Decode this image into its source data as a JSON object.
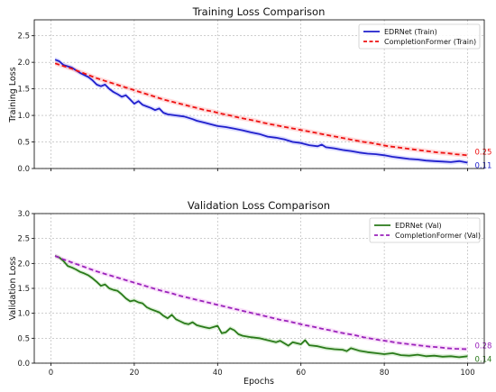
{
  "chart_data": [
    {
      "type": "line",
      "title": "Training Loss Comparison",
      "xlabel": "",
      "ylabel": "Training Loss",
      "xlim": [
        -4,
        104
      ],
      "ylim": [
        0,
        2.8
      ],
      "xticks": [
        0,
        20,
        40,
        60,
        80,
        100
      ],
      "yticks": [
        0.0,
        0.5,
        1.0,
        1.5,
        2.0,
        2.5
      ],
      "xtick_labels_visible": false,
      "grid": true,
      "legend": "top-right",
      "series": [
        {
          "name": "EDRNet (Train)",
          "color": "#1f1fcc",
          "style": "solid",
          "band_color": "#9e9eff",
          "end_label": "0.11",
          "points": [
            [
              1,
              2.05
            ],
            [
              2,
              2.02
            ],
            [
              3,
              1.95
            ],
            [
              5,
              1.9
            ],
            [
              7,
              1.8
            ],
            [
              9,
              1.72
            ],
            [
              10,
              1.66
            ],
            [
              11,
              1.58
            ],
            [
              12,
              1.55
            ],
            [
              13,
              1.58
            ],
            [
              14,
              1.5
            ],
            [
              15,
              1.44
            ],
            [
              16,
              1.4
            ],
            [
              17,
              1.35
            ],
            [
              18,
              1.38
            ],
            [
              19,
              1.3
            ],
            [
              20,
              1.22
            ],
            [
              21,
              1.27
            ],
            [
              22,
              1.2
            ],
            [
              23,
              1.17
            ],
            [
              24,
              1.14
            ],
            [
              25,
              1.1
            ],
            [
              26,
              1.13
            ],
            [
              27,
              1.05
            ],
            [
              28,
              1.02
            ],
            [
              30,
              1.0
            ],
            [
              32,
              0.98
            ],
            [
              34,
              0.93
            ],
            [
              35,
              0.9
            ],
            [
              36,
              0.88
            ],
            [
              37,
              0.86
            ],
            [
              38,
              0.84
            ],
            [
              40,
              0.8
            ],
            [
              42,
              0.78
            ],
            [
              44,
              0.75
            ],
            [
              46,
              0.72
            ],
            [
              48,
              0.68
            ],
            [
              50,
              0.65
            ],
            [
              52,
              0.6
            ],
            [
              54,
              0.58
            ],
            [
              56,
              0.55
            ],
            [
              58,
              0.5
            ],
            [
              60,
              0.48
            ],
            [
              62,
              0.44
            ],
            [
              64,
              0.42
            ],
            [
              65,
              0.45
            ],
            [
              66,
              0.4
            ],
            [
              68,
              0.38
            ],
            [
              70,
              0.35
            ],
            [
              72,
              0.33
            ],
            [
              74,
              0.3
            ],
            [
              76,
              0.28
            ],
            [
              78,
              0.27
            ],
            [
              80,
              0.25
            ],
            [
              82,
              0.22
            ],
            [
              84,
              0.2
            ],
            [
              86,
              0.18
            ],
            [
              88,
              0.17
            ],
            [
              90,
              0.15
            ],
            [
              92,
              0.14
            ],
            [
              94,
              0.13
            ],
            [
              96,
              0.12
            ],
            [
              98,
              0.14
            ],
            [
              100,
              0.11
            ]
          ]
        },
        {
          "name": "CompletionFormer (Train)",
          "color": "#ee1111",
          "style": "dashed",
          "band_color": "#ff9a9a",
          "end_label": "0.25",
          "points": [
            [
              1,
              1.98
            ],
            [
              3,
              1.93
            ],
            [
              5,
              1.88
            ],
            [
              7,
              1.82
            ],
            [
              9,
              1.76
            ],
            [
              11,
              1.7
            ],
            [
              13,
              1.65
            ],
            [
              15,
              1.6
            ],
            [
              17,
              1.55
            ],
            [
              19,
              1.5
            ],
            [
              21,
              1.45
            ],
            [
              23,
              1.4
            ],
            [
              25,
              1.35
            ],
            [
              27,
              1.3
            ],
            [
              29,
              1.26
            ],
            [
              31,
              1.22
            ],
            [
              33,
              1.18
            ],
            [
              35,
              1.14
            ],
            [
              37,
              1.1
            ],
            [
              39,
              1.07
            ],
            [
              41,
              1.03
            ],
            [
              43,
              1.0
            ],
            [
              45,
              0.96
            ],
            [
              47,
              0.93
            ],
            [
              49,
              0.9
            ],
            [
              51,
              0.86
            ],
            [
              53,
              0.83
            ],
            [
              55,
              0.8
            ],
            [
              57,
              0.77
            ],
            [
              59,
              0.74
            ],
            [
              61,
              0.71
            ],
            [
              63,
              0.68
            ],
            [
              65,
              0.65
            ],
            [
              67,
              0.62
            ],
            [
              69,
              0.59
            ],
            [
              71,
              0.56
            ],
            [
              73,
              0.53
            ],
            [
              75,
              0.5
            ],
            [
              77,
              0.48
            ],
            [
              79,
              0.45
            ],
            [
              81,
              0.42
            ],
            [
              83,
              0.4
            ],
            [
              85,
              0.38
            ],
            [
              87,
              0.36
            ],
            [
              89,
              0.34
            ],
            [
              91,
              0.32
            ],
            [
              93,
              0.3
            ],
            [
              95,
              0.29
            ],
            [
              97,
              0.27
            ],
            [
              100,
              0.25
            ]
          ]
        }
      ]
    },
    {
      "type": "line",
      "title": "Validation Loss Comparison",
      "xlabel": "Epochs",
      "ylabel": "Validation Loss",
      "xlim": [
        -4,
        104
      ],
      "ylim": [
        0,
        3.0
      ],
      "xticks": [
        0,
        20,
        40,
        60,
        80,
        100
      ],
      "yticks": [
        0.0,
        0.5,
        1.0,
        1.5,
        2.0,
        2.5,
        3.0
      ],
      "xtick_labels_visible": true,
      "grid": true,
      "legend": "top-right",
      "series": [
        {
          "name": "EDRNet (Val)",
          "color": "#2a7a1a",
          "style": "solid",
          "band_color": "#9ed58e",
          "end_label": "0.14",
          "points": [
            [
              1,
              2.15
            ],
            [
              2,
              2.12
            ],
            [
              3,
              2.05
            ],
            [
              4,
              1.95
            ],
            [
              5,
              1.92
            ],
            [
              6,
              1.88
            ],
            [
              7,
              1.83
            ],
            [
              8,
              1.8
            ],
            [
              9,
              1.76
            ],
            [
              10,
              1.7
            ],
            [
              11,
              1.63
            ],
            [
              12,
              1.55
            ],
            [
              13,
              1.58
            ],
            [
              14,
              1.5
            ],
            [
              15,
              1.47
            ],
            [
              16,
              1.45
            ],
            [
              17,
              1.38
            ],
            [
              18,
              1.3
            ],
            [
              19,
              1.24
            ],
            [
              20,
              1.26
            ],
            [
              21,
              1.22
            ],
            [
              22,
              1.2
            ],
            [
              23,
              1.12
            ],
            [
              24,
              1.08
            ],
            [
              25,
              1.05
            ],
            [
              26,
              1.02
            ],
            [
              27,
              0.95
            ],
            [
              28,
              0.9
            ],
            [
              29,
              0.97
            ],
            [
              30,
              0.88
            ],
            [
              31,
              0.84
            ],
            [
              32,
              0.8
            ],
            [
              33,
              0.78
            ],
            [
              34,
              0.82
            ],
            [
              35,
              0.76
            ],
            [
              36,
              0.74
            ],
            [
              37,
              0.72
            ],
            [
              38,
              0.7
            ],
            [
              40,
              0.75
            ],
            [
              41,
              0.6
            ],
            [
              42,
              0.62
            ],
            [
              43,
              0.7
            ],
            [
              44,
              0.66
            ],
            [
              45,
              0.58
            ],
            [
              46,
              0.55
            ],
            [
              48,
              0.52
            ],
            [
              50,
              0.5
            ],
            [
              52,
              0.46
            ],
            [
              54,
              0.42
            ],
            [
              55,
              0.45
            ],
            [
              56,
              0.4
            ],
            [
              57,
              0.35
            ],
            [
              58,
              0.42
            ],
            [
              60,
              0.38
            ],
            [
              61,
              0.46
            ],
            [
              62,
              0.36
            ],
            [
              64,
              0.34
            ],
            [
              66,
              0.3
            ],
            [
              68,
              0.28
            ],
            [
              70,
              0.27
            ],
            [
              71,
              0.24
            ],
            [
              72,
              0.3
            ],
            [
              74,
              0.25
            ],
            [
              76,
              0.22
            ],
            [
              78,
              0.2
            ],
            [
              80,
              0.18
            ],
            [
              82,
              0.2
            ],
            [
              84,
              0.16
            ],
            [
              86,
              0.15
            ],
            [
              88,
              0.17
            ],
            [
              90,
              0.14
            ],
            [
              92,
              0.15
            ],
            [
              94,
              0.13
            ],
            [
              96,
              0.14
            ],
            [
              98,
              0.12
            ],
            [
              100,
              0.14
            ]
          ]
        },
        {
          "name": "CompletionFormer (Val)",
          "color": "#9922bb",
          "style": "dashed",
          "band_color": "#f0a8f0",
          "end_label": "0.28",
          "points": [
            [
              1,
              2.15
            ],
            [
              3,
              2.08
            ],
            [
              5,
              2.02
            ],
            [
              7,
              1.96
            ],
            [
              9,
              1.9
            ],
            [
              11,
              1.84
            ],
            [
              13,
              1.79
            ],
            [
              15,
              1.74
            ],
            [
              17,
              1.69
            ],
            [
              19,
              1.64
            ],
            [
              21,
              1.59
            ],
            [
              23,
              1.54
            ],
            [
              25,
              1.49
            ],
            [
              27,
              1.44
            ],
            [
              29,
              1.4
            ],
            [
              31,
              1.35
            ],
            [
              33,
              1.31
            ],
            [
              35,
              1.27
            ],
            [
              37,
              1.23
            ],
            [
              39,
              1.19
            ],
            [
              41,
              1.15
            ],
            [
              43,
              1.11
            ],
            [
              45,
              1.07
            ],
            [
              47,
              1.03
            ],
            [
              49,
              0.99
            ],
            [
              51,
              0.95
            ],
            [
              53,
              0.91
            ],
            [
              55,
              0.87
            ],
            [
              57,
              0.84
            ],
            [
              59,
              0.8
            ],
            [
              61,
              0.76
            ],
            [
              63,
              0.73
            ],
            [
              65,
              0.69
            ],
            [
              67,
              0.66
            ],
            [
              69,
              0.62
            ],
            [
              71,
              0.59
            ],
            [
              73,
              0.56
            ],
            [
              75,
              0.52
            ],
            [
              77,
              0.49
            ],
            [
              79,
              0.46
            ],
            [
              81,
              0.44
            ],
            [
              83,
              0.41
            ],
            [
              85,
              0.39
            ],
            [
              87,
              0.37
            ],
            [
              89,
              0.35
            ],
            [
              91,
              0.33
            ],
            [
              93,
              0.32
            ],
            [
              95,
              0.3
            ],
            [
              97,
              0.29
            ],
            [
              100,
              0.28
            ]
          ]
        }
      ]
    }
  ]
}
